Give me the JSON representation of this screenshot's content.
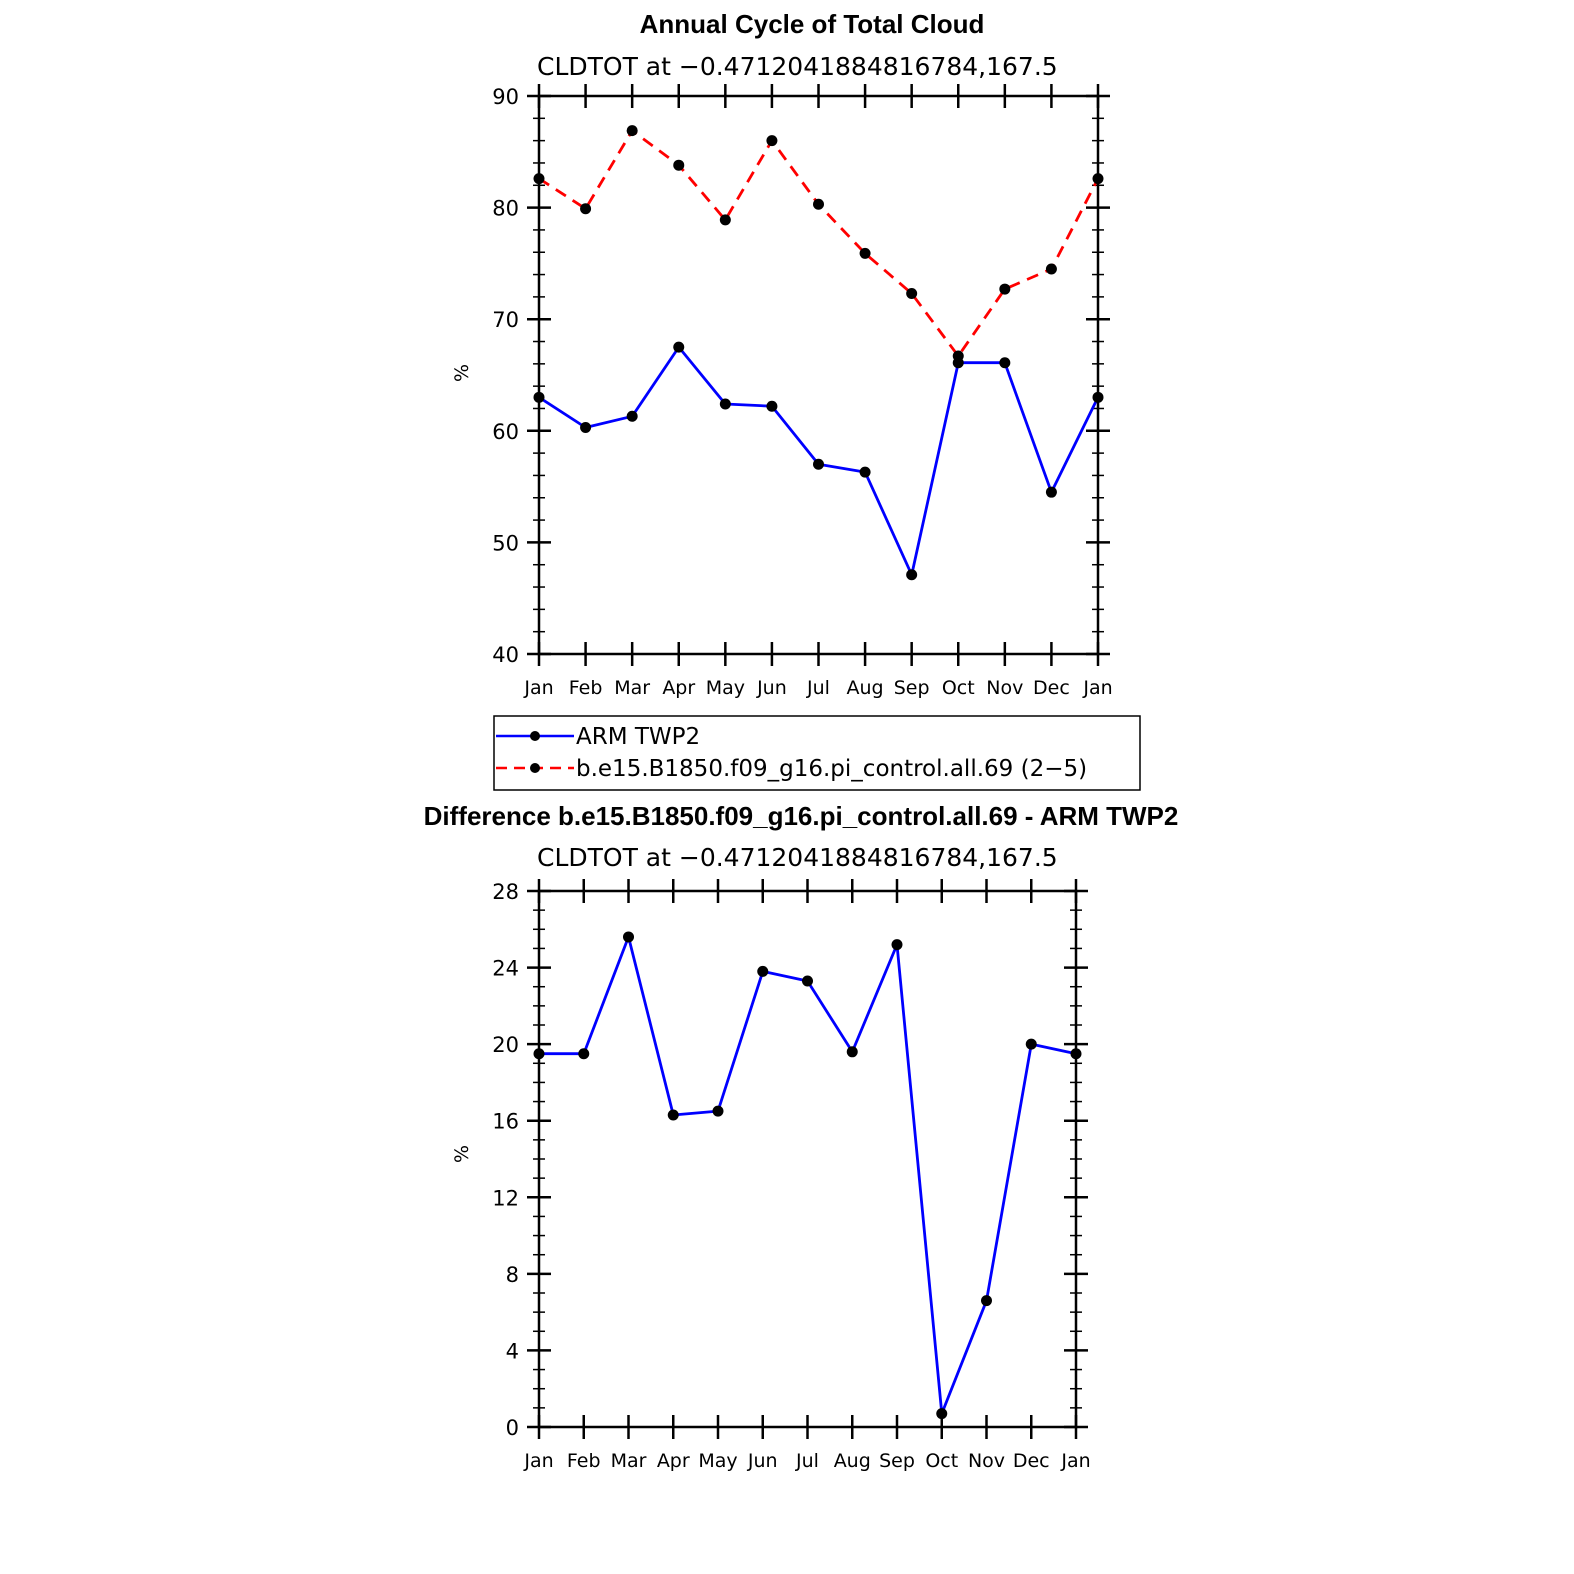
{
  "chart_data": [
    {
      "type": "line",
      "title": "Annual Cycle of Total Cloud",
      "subtitle": "CLDTOT at −0.4712041884816784,167.5",
      "ylabel": "%",
      "xlabel": "",
      "categories": [
        "Jan",
        "Feb",
        "Mar",
        "Apr",
        "May",
        "Jun",
        "Jul",
        "Aug",
        "Sep",
        "Oct",
        "Nov",
        "Dec",
        "Jan"
      ],
      "ylim": [
        40,
        90
      ],
      "yticks": [
        "40",
        "50",
        "60",
        "70",
        "80",
        "90"
      ],
      "grid": false,
      "legend_position": "bottom",
      "series": [
        {
          "name": "ARM TWP2",
          "color": "#0000ff",
          "dash": "solid",
          "marker": "filled-circle",
          "values": [
            63.0,
            60.3,
            61.3,
            67.5,
            62.4,
            62.2,
            57.0,
            56.3,
            47.1,
            66.1,
            66.1,
            54.5,
            63.0
          ]
        },
        {
          "name": "b.e15.B1850.f09_g16.pi_control.all.69 (2−5)",
          "color": "#ff0000",
          "dash": "dashed",
          "marker": "filled-circle",
          "values": [
            82.6,
            79.9,
            86.9,
            83.8,
            78.9,
            86.0,
            80.3,
            75.9,
            72.3,
            66.7,
            72.7,
            74.5,
            82.6
          ]
        }
      ]
    },
    {
      "type": "line",
      "title": "Difference b.e15.B1850.f09_g16.pi_control.all.69 - ARM TWP2",
      "subtitle": "CLDTOT at −0.4712041884816784,167.5",
      "ylabel": "%",
      "xlabel": "",
      "categories": [
        "Jan",
        "Feb",
        "Mar",
        "Apr",
        "May",
        "Jun",
        "Jul",
        "Aug",
        "Sep",
        "Oct",
        "Nov",
        "Dec",
        "Jan"
      ],
      "ylim": [
        0,
        28
      ],
      "yticks": [
        "0",
        "4",
        "8",
        "12",
        "16",
        "20",
        "24",
        "28"
      ],
      "grid": false,
      "series": [
        {
          "color": "#0000ff",
          "dash": "solid",
          "marker": "filled-circle",
          "values": [
            19.5,
            19.5,
            25.6,
            16.3,
            16.5,
            23.8,
            23.3,
            19.6,
            25.2,
            0.7,
            6.6,
            20.0,
            19.5
          ]
        }
      ]
    }
  ]
}
